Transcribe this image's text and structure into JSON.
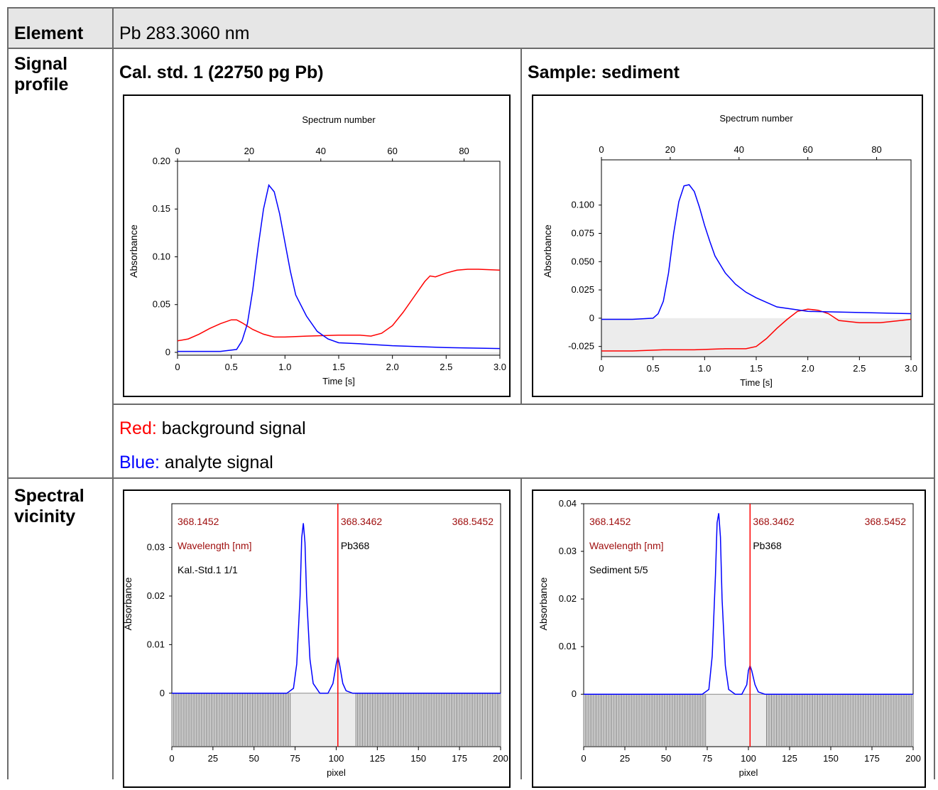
{
  "table": {
    "row_element": {
      "label": "Element",
      "value": "Pb 283.3060 nm"
    },
    "row_signal": {
      "label_line1": "Signal",
      "label_line2": "profile",
      "left_title": "Cal. std. 1 (22750 pg Pb)",
      "right_title": "Sample: sediment",
      "legend_red_key": "Red:",
      "legend_red_text": " background signal",
      "legend_blue_key": "Blue:",
      "legend_blue_text": " analyte signal"
    },
    "row_spectral": {
      "label_line1": "Spectral",
      "label_line2": "vicinity"
    }
  },
  "colors": {
    "background": "#ff0000",
    "analyte": "#0000ff",
    "marker": "#ff0000",
    "label_dark_red": "#a01010",
    "baseline_fill": "#ececec"
  },
  "chart_data": [
    {
      "id": "signal-cal",
      "type": "line",
      "xlabel": "Time [s]",
      "ylabel": "Absorbance",
      "top_label": "Spectrum number",
      "xlim": [
        0,
        3.0
      ],
      "ylim": [
        -0.003,
        0.2
      ],
      "x_ticks": [
        "0",
        "0.5",
        "1.0",
        "1.5",
        "2.0",
        "2.5",
        "3.0"
      ],
      "y_ticks": [
        {
          "v": 0,
          "t": "0"
        },
        {
          "v": 0.05,
          "t": "0.05"
        },
        {
          "v": 0.1,
          "t": "0.10"
        },
        {
          "v": 0.15,
          "t": "0.15"
        },
        {
          "v": 0.2,
          "t": "0.20"
        }
      ],
      "top_ticks": [
        "0",
        "20",
        "40",
        "60",
        "80"
      ],
      "top_max": 90,
      "series": [
        {
          "color": "red",
          "x": [
            0,
            0.1,
            0.2,
            0.3,
            0.4,
            0.5,
            0.55,
            0.6,
            0.7,
            0.8,
            0.9,
            1.0,
            1.2,
            1.5,
            1.7,
            1.8,
            1.9,
            2.0,
            2.1,
            2.2,
            2.3,
            2.35,
            2.4,
            2.5,
            2.6,
            2.7,
            2.8,
            3.0
          ],
          "y": [
            0.012,
            0.014,
            0.019,
            0.025,
            0.03,
            0.034,
            0.034,
            0.031,
            0.024,
            0.019,
            0.016,
            0.016,
            0.017,
            0.018,
            0.018,
            0.017,
            0.02,
            0.028,
            0.042,
            0.058,
            0.074,
            0.08,
            0.079,
            0.083,
            0.086,
            0.087,
            0.087,
            0.086
          ]
        },
        {
          "color": "blue",
          "x": [
            0,
            0.2,
            0.4,
            0.55,
            0.6,
            0.65,
            0.7,
            0.75,
            0.8,
            0.85,
            0.9,
            0.95,
            1.0,
            1.05,
            1.1,
            1.2,
            1.3,
            1.4,
            1.5,
            1.7,
            2.0,
            2.5,
            3.0
          ],
          "y": [
            0.001,
            0.001,
            0.001,
            0.003,
            0.012,
            0.03,
            0.065,
            0.11,
            0.15,
            0.175,
            0.168,
            0.145,
            0.115,
            0.085,
            0.06,
            0.038,
            0.022,
            0.014,
            0.01,
            0.009,
            0.007,
            0.005,
            0.004
          ]
        }
      ]
    },
    {
      "id": "signal-sample",
      "type": "line",
      "xlabel": "Time [s]",
      "ylabel": "Absorbance",
      "top_label": "Spectrum number",
      "xlim": [
        0,
        3.0
      ],
      "ylim": [
        -0.034,
        0.14
      ],
      "x_ticks": [
        "0",
        "0.5",
        "1.0",
        "1.5",
        "2.0",
        "2.5",
        "3.0"
      ],
      "y_ticks": [
        {
          "v": -0.025,
          "t": "-0.025"
        },
        {
          "v": 0,
          "t": "0"
        },
        {
          "v": 0.025,
          "t": "0.025"
        },
        {
          "v": 0.05,
          "t": "0.050"
        },
        {
          "v": 0.075,
          "t": "0.075"
        },
        {
          "v": 0.1,
          "t": "0.100"
        }
      ],
      "top_ticks": [
        "0",
        "20",
        "40",
        "60",
        "80"
      ],
      "top_max": 90,
      "series": [
        {
          "color": "red",
          "x": [
            0,
            0.3,
            0.6,
            0.9,
            1.2,
            1.4,
            1.5,
            1.6,
            1.7,
            1.8,
            1.9,
            2.0,
            2.1,
            2.2,
            2.3,
            2.5,
            2.7,
            2.9,
            3.0
          ],
          "y": [
            -0.029,
            -0.029,
            -0.028,
            -0.028,
            -0.027,
            -0.027,
            -0.025,
            -0.018,
            -0.009,
            -0.001,
            0.006,
            0.008,
            0.007,
            0.004,
            -0.002,
            -0.004,
            -0.004,
            -0.002,
            -0.001
          ]
        },
        {
          "color": "blue",
          "x": [
            0,
            0.3,
            0.5,
            0.55,
            0.6,
            0.65,
            0.7,
            0.75,
            0.8,
            0.85,
            0.9,
            0.95,
            1.0,
            1.05,
            1.1,
            1.2,
            1.3,
            1.4,
            1.5,
            1.7,
            2.0,
            2.5,
            3.0
          ],
          "y": [
            -0.001,
            -0.001,
            0.0,
            0.004,
            0.015,
            0.04,
            0.075,
            0.103,
            0.117,
            0.118,
            0.112,
            0.098,
            0.082,
            0.068,
            0.055,
            0.04,
            0.03,
            0.023,
            0.018,
            0.01,
            0.006,
            0.005,
            0.004
          ]
        }
      ]
    },
    {
      "id": "spectral-cal",
      "type": "line",
      "xlabel": "pixel",
      "ylabel": "Absorbance",
      "xlim": [
        0,
        200
      ],
      "ylim": [
        -0.011,
        0.039
      ],
      "x_ticks": [
        "0",
        "25",
        "50",
        "75",
        "100",
        "125",
        "150",
        "175",
        "200"
      ],
      "y_ticks": [
        {
          "v": 0,
          "t": "0"
        },
        {
          "v": 0.01,
          "t": "0.01"
        },
        {
          "v": 0.02,
          "t": "0.02"
        },
        {
          "v": 0.03,
          "t": "0.03"
        }
      ],
      "wl_left": "368.1452",
      "wl_mid": "368.3462",
      "wl_right": "368.5452",
      "wl_label": "Wavelength [nm]",
      "line_label": "Pb368",
      "sample_label": "Kal.-Std.1 1/1",
      "marker_x": 101,
      "bar_ranges": [
        [
          0,
          72
        ],
        [
          112,
          200
        ]
      ],
      "series": [
        {
          "color": "blue",
          "x": [
            0,
            70,
            74,
            76,
            78,
            79,
            80,
            81,
            82,
            84,
            86,
            90,
            95,
            98,
            100,
            101,
            102,
            104,
            106,
            110,
            115,
            200
          ],
          "y": [
            0,
            0,
            0.001,
            0.006,
            0.02,
            0.032,
            0.035,
            0.031,
            0.02,
            0.007,
            0.002,
            0.0,
            0.0,
            0.002,
            0.006,
            0.0075,
            0.006,
            0.002,
            0.0005,
            0,
            0,
            0
          ]
        }
      ]
    },
    {
      "id": "spectral-sample",
      "type": "line",
      "xlabel": "pixel",
      "ylabel": "Absorbance",
      "xlim": [
        0,
        200
      ],
      "ylim": [
        -0.011,
        0.04
      ],
      "x_ticks": [
        "0",
        "25",
        "50",
        "75",
        "100",
        "125",
        "150",
        "175",
        "200"
      ],
      "y_ticks": [
        {
          "v": 0,
          "t": "0"
        },
        {
          "v": 0.01,
          "t": "0.01"
        },
        {
          "v": 0.02,
          "t": "0.02"
        },
        {
          "v": 0.03,
          "t": "0.03"
        },
        {
          "v": 0.04,
          "t": "0.04"
        }
      ],
      "wl_left": "368.1452",
      "wl_mid": "368.3462",
      "wl_right": "368.5452",
      "wl_label": "Wavelength [nm]",
      "line_label": "Pb368",
      "sample_label": "Sediment 5/5",
      "marker_x": 101,
      "bar_ranges": [
        [
          0,
          74
        ],
        [
          111,
          200
        ]
      ],
      "series": [
        {
          "color": "blue",
          "x": [
            0,
            72,
            76,
            78,
            80,
            81,
            82,
            83,
            84,
            86,
            88,
            92,
            96,
            99,
            100,
            101,
            102,
            104,
            106,
            110,
            115,
            200
          ],
          "y": [
            0,
            0,
            0.001,
            0.008,
            0.025,
            0.036,
            0.038,
            0.033,
            0.02,
            0.006,
            0.001,
            0.0,
            0.0,
            0.002,
            0.005,
            0.006,
            0.005,
            0.002,
            0.0005,
            0,
            0,
            0
          ]
        }
      ]
    }
  ]
}
